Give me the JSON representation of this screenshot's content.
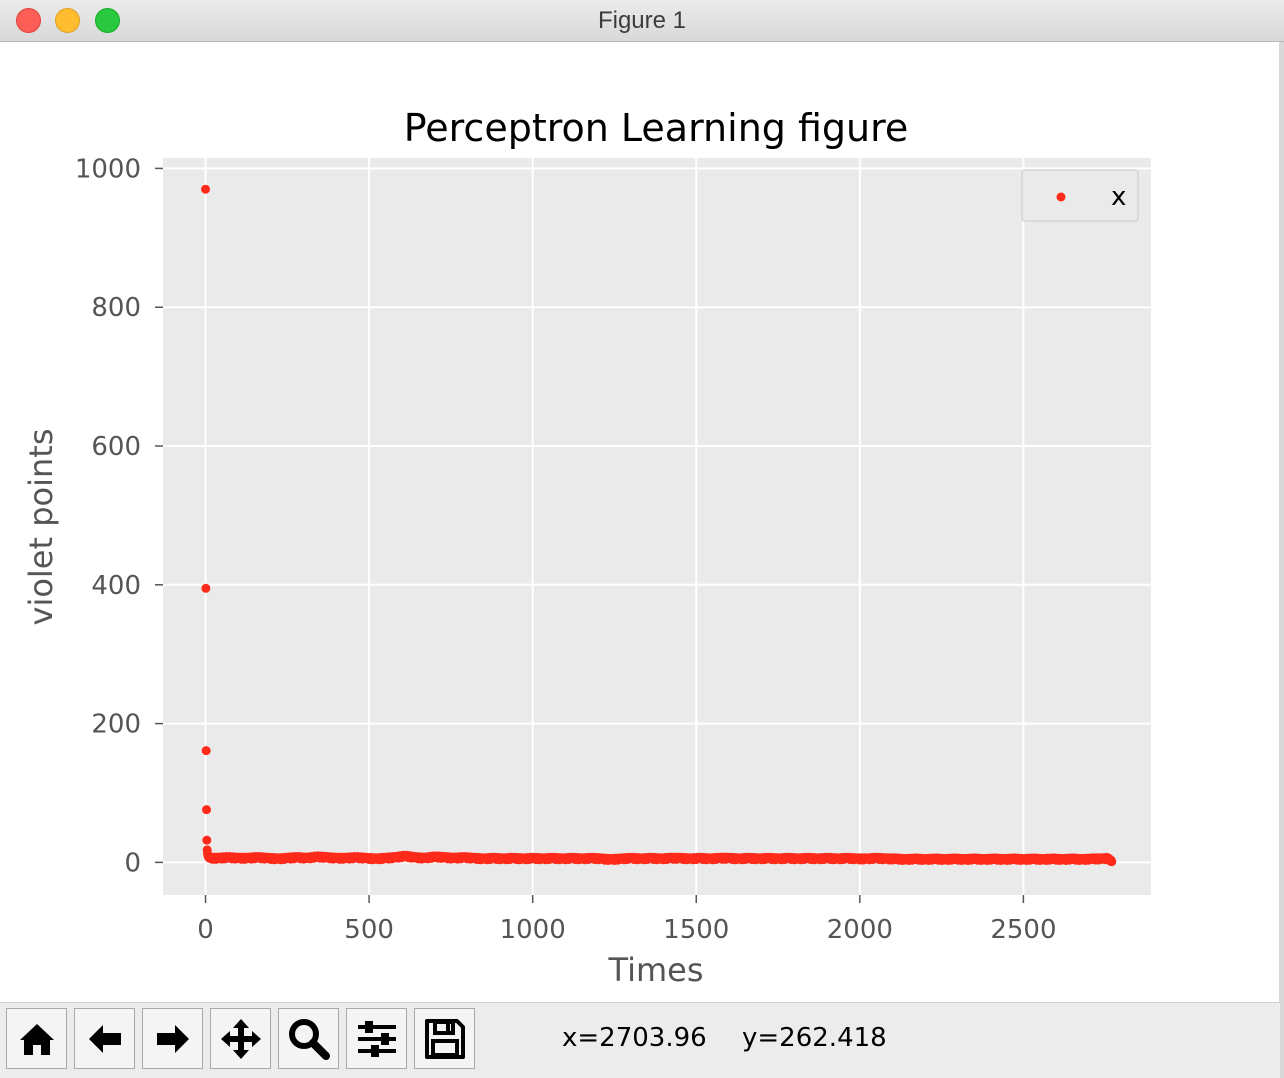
{
  "window": {
    "title": "Figure 1"
  },
  "toolbar": {
    "buttons": [
      "home-icon",
      "back-arrow-icon",
      "forward-arrow-icon",
      "pan-move-icon",
      "zoom-magnifier-icon",
      "configure-subplots-icon",
      "save-floppy-icon"
    ],
    "x_readout": "x=2703.96",
    "y_readout": "y=262.418"
  },
  "chart_data": {
    "type": "scatter",
    "title": "Perceptron Learning figure",
    "xlabel": "Times",
    "ylabel": "violet points",
    "xlim": [
      -130,
      2890
    ],
    "ylim": [
      -47,
      1015
    ],
    "xticks": [
      0,
      500,
      1000,
      1500,
      2000,
      2500
    ],
    "yticks": [
      0,
      200,
      400,
      600,
      800,
      1000
    ],
    "grid": true,
    "legend": {
      "position": "top-right",
      "entries": [
        {
          "label": "x",
          "color": "#ff2a1a"
        }
      ]
    },
    "colors": {
      "marker": "#ff2a1a",
      "axes_bg": "#eaeaea",
      "grid": "#ffffff"
    },
    "series": [
      {
        "name": "x",
        "points": [
          [
            0,
            970
          ],
          [
            1,
            395
          ],
          [
            2,
            161
          ],
          [
            3,
            76
          ],
          [
            4,
            32
          ],
          [
            5,
            18
          ],
          [
            6,
            13
          ],
          [
            7,
            11
          ],
          [
            8,
            9
          ],
          [
            9,
            8
          ],
          [
            10,
            7
          ],
          [
            12,
            6
          ],
          [
            40,
            6
          ],
          [
            70,
            7
          ],
          [
            100,
            6
          ],
          [
            130,
            6
          ],
          [
            160,
            7
          ],
          [
            190,
            6
          ],
          [
            220,
            5
          ],
          [
            250,
            6
          ],
          [
            280,
            7
          ],
          [
            310,
            6
          ],
          [
            340,
            8
          ],
          [
            370,
            7
          ],
          [
            400,
            6
          ],
          [
            430,
            6
          ],
          [
            460,
            7
          ],
          [
            490,
            6
          ],
          [
            520,
            5
          ],
          [
            550,
            6
          ],
          [
            580,
            7
          ],
          [
            610,
            9
          ],
          [
            640,
            7
          ],
          [
            670,
            6
          ],
          [
            700,
            8
          ],
          [
            730,
            7
          ],
          [
            760,
            6
          ],
          [
            790,
            7
          ],
          [
            820,
            6
          ],
          [
            850,
            5
          ],
          [
            880,
            6
          ],
          [
            910,
            5
          ],
          [
            940,
            6
          ],
          [
            970,
            5
          ],
          [
            1000,
            6
          ],
          [
            1030,
            5
          ],
          [
            1060,
            6
          ],
          [
            1090,
            5
          ],
          [
            1120,
            6
          ],
          [
            1150,
            5
          ],
          [
            1180,
            6
          ],
          [
            1210,
            5
          ],
          [
            1240,
            4
          ],
          [
            1270,
            5
          ],
          [
            1300,
            6
          ],
          [
            1330,
            5
          ],
          [
            1360,
            6
          ],
          [
            1390,
            5
          ],
          [
            1420,
            6
          ],
          [
            1450,
            6
          ],
          [
            1480,
            5
          ],
          [
            1510,
            6
          ],
          [
            1540,
            5
          ],
          [
            1570,
            6
          ],
          [
            1600,
            6
          ],
          [
            1630,
            5
          ],
          [
            1660,
            6
          ],
          [
            1690,
            5
          ],
          [
            1720,
            6
          ],
          [
            1750,
            5
          ],
          [
            1780,
            6
          ],
          [
            1810,
            5
          ],
          [
            1840,
            6
          ],
          [
            1870,
            5
          ],
          [
            1900,
            6
          ],
          [
            1930,
            5
          ],
          [
            1960,
            6
          ],
          [
            1990,
            5
          ],
          [
            2020,
            5
          ],
          [
            2050,
            6
          ],
          [
            2080,
            5
          ],
          [
            2110,
            5
          ],
          [
            2140,
            4
          ],
          [
            2170,
            5
          ],
          [
            2200,
            4
          ],
          [
            2230,
            5
          ],
          [
            2260,
            4
          ],
          [
            2290,
            5
          ],
          [
            2320,
            4
          ],
          [
            2350,
            5
          ],
          [
            2380,
            4
          ],
          [
            2410,
            5
          ],
          [
            2440,
            4
          ],
          [
            2470,
            5
          ],
          [
            2500,
            4
          ],
          [
            2530,
            5
          ],
          [
            2560,
            4
          ],
          [
            2590,
            5
          ],
          [
            2620,
            4
          ],
          [
            2650,
            5
          ],
          [
            2680,
            4
          ],
          [
            2710,
            5
          ],
          [
            2740,
            5
          ],
          [
            2760,
            6
          ],
          [
            2765,
            2
          ],
          [
            2770,
            1
          ]
        ]
      }
    ]
  }
}
